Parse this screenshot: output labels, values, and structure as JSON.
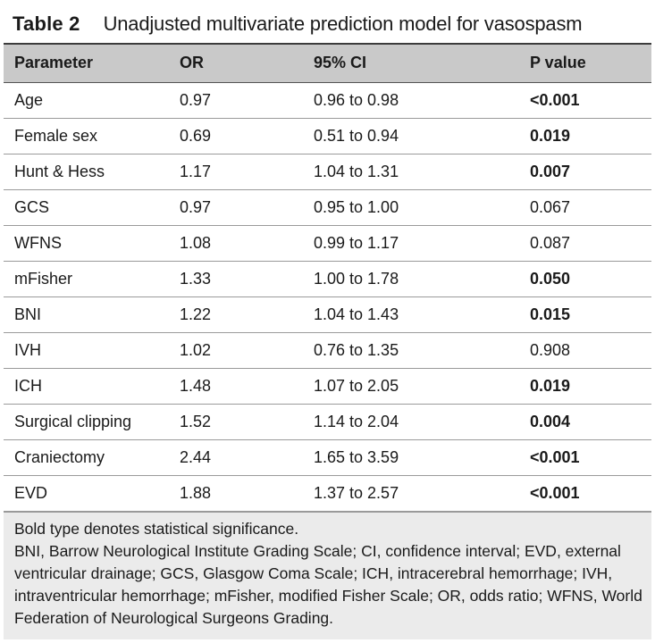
{
  "table": {
    "label": "Table 2",
    "title": "Unadjusted multivariate prediction model for vasospasm",
    "headers": [
      "Parameter",
      "OR",
      "95% CI",
      "P value"
    ],
    "rows": [
      {
        "parameter": "Age",
        "or": "0.97",
        "ci": "0.96 to 0.98",
        "p": "<0.001",
        "significant": true
      },
      {
        "parameter": "Female sex",
        "or": "0.69",
        "ci": "0.51 to 0.94",
        "p": "0.019",
        "significant": true
      },
      {
        "parameter": "Hunt & Hess",
        "or": "1.17",
        "ci": "1.04 to 1.31",
        "p": "0.007",
        "significant": true
      },
      {
        "parameter": "GCS",
        "or": "0.97",
        "ci": "0.95 to 1.00",
        "p": "0.067",
        "significant": false
      },
      {
        "parameter": "WFNS",
        "or": "1.08",
        "ci": "0.99 to 1.17",
        "p": "0.087",
        "significant": false
      },
      {
        "parameter": "mFisher",
        "or": "1.33",
        "ci": "1.00 to 1.78",
        "p": "0.050",
        "significant": true
      },
      {
        "parameter": "BNI",
        "or": "1.22",
        "ci": "1.04 to 1.43",
        "p": "0.015",
        "significant": true
      },
      {
        "parameter": "IVH",
        "or": "1.02",
        "ci": "0.76 to 1.35",
        "p": "0.908",
        "significant": false
      },
      {
        "parameter": "ICH",
        "or": "1.48",
        "ci": "1.07 to 2.05",
        "p": "0.019",
        "significant": true
      },
      {
        "parameter": "Surgical clipping",
        "or": "1.52",
        "ci": "1.14 to 2.04",
        "p": "0.004",
        "significant": true
      },
      {
        "parameter": "Craniectomy",
        "or": "2.44",
        "ci": "1.65 to 3.59",
        "p": "<0.001",
        "significant": true
      },
      {
        "parameter": "EVD",
        "or": "1.88",
        "ci": "1.37 to 2.57",
        "p": "<0.001",
        "significant": true
      }
    ],
    "footnote_bold": "Bold type denotes statistical significance.",
    "footnote_abbrev": "BNI, Barrow Neurological Institute Grading Scale; CI, confidence interval; EVD, external ventricular drainage; GCS, Glasgow Coma Scale; ICH, intracerebral hemorrhage; IVH, intraventricular hemorrhage; mFisher, modified Fisher Scale; OR, odds ratio; WFNS, World Federation of Neurological Surgeons Grading."
  }
}
